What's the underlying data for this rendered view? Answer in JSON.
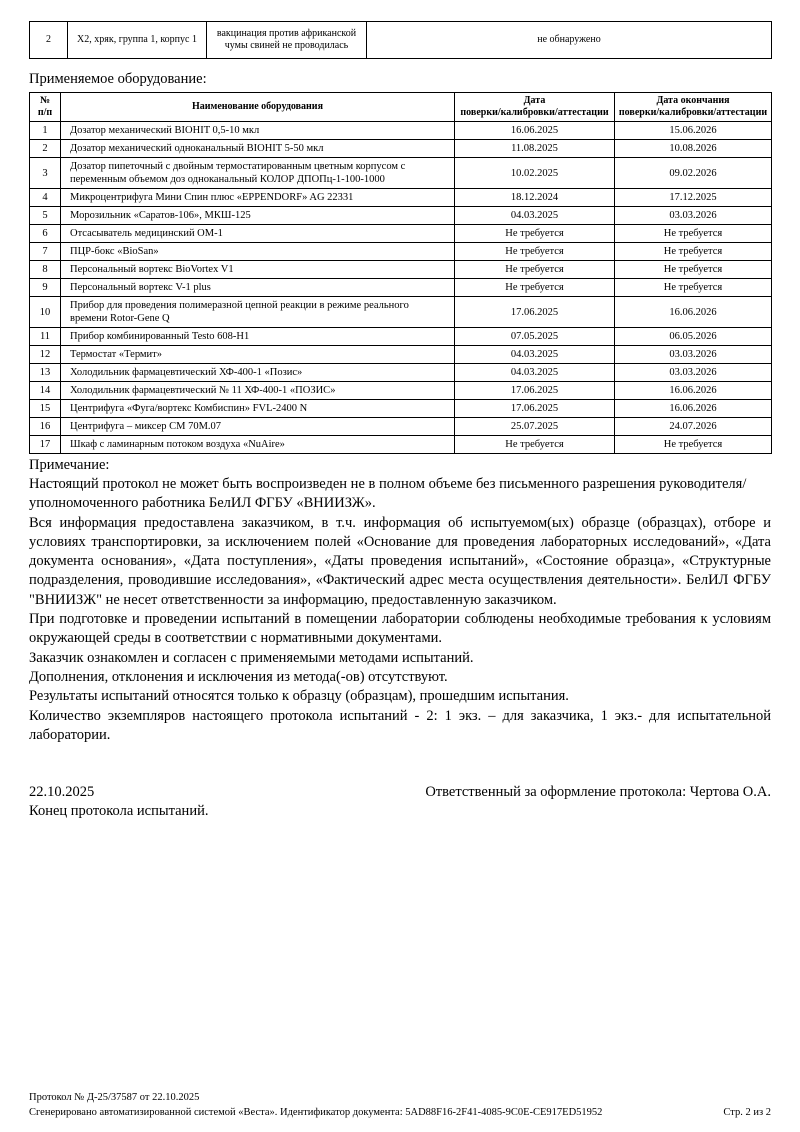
{
  "results_row": {
    "num": "2",
    "sample": "Х2, хряк, группа 1, корпус 1",
    "vaccination": "вакцинация против африканской чумы свиней не проводилась",
    "result": "не обнаружено"
  },
  "equipment": {
    "title": "Применяемое оборудование:",
    "headers": {
      "num": "№\nп/п",
      "name": "Наименование оборудования",
      "date": "Дата\nповерки/калибровки/аттестации",
      "date_end": "Дата окончания\nповерки/калибровки/аттестации"
    },
    "rows": [
      {
        "num": "1",
        "name": "Дозатор механический BIOHIT 0,5-10 мкл",
        "date": "16.06.2025",
        "date_end": "15.06.2026"
      },
      {
        "num": "2",
        "name": "Дозатор механический одноканальный BIOHIT 5-50 мкл",
        "date": "11.08.2025",
        "date_end": "10.08.2026"
      },
      {
        "num": "3",
        "name": "Дозатор пипеточный с двойным термостатированным цветным корпусом с переменным объемом доз одноканальный КОЛОР ДПОПц-1-100-1000",
        "date": "10.02.2025",
        "date_end": "09.02.2026"
      },
      {
        "num": "4",
        "name": "Микроцентрифуга Мини Спин плюс «EPPENDORF» AG 22331",
        "date": "18.12.2024",
        "date_end": "17.12.2025"
      },
      {
        "num": "5",
        "name": "Морозильник «Саратов-106», МКШ-125",
        "date": "04.03.2025",
        "date_end": "03.03.2026"
      },
      {
        "num": "6",
        "name": "Отсасыватель медицинский ОМ-1",
        "date": "Не требуется",
        "date_end": "Не требуется"
      },
      {
        "num": "7",
        "name": "ПЦР-бокс «BioSan»",
        "date": "Не требуется",
        "date_end": "Не требуется"
      },
      {
        "num": "8",
        "name": "Персональный вортекс BioVortex V1",
        "date": "Не требуется",
        "date_end": "Не требуется"
      },
      {
        "num": "9",
        "name": "Персональный вортекс V-1 plus",
        "date": "Не требуется",
        "date_end": "Не требуется"
      },
      {
        "num": "10",
        "name": "Прибор для проведения полимеразной цепной реакции в режиме реального времени Rotor-Gene Q",
        "date": "17.06.2025",
        "date_end": "16.06.2026"
      },
      {
        "num": "11",
        "name": "Прибор комбинированный Testo 608-H1",
        "date": "07.05.2025",
        "date_end": "06.05.2026"
      },
      {
        "num": "12",
        "name": "Термостат «Термит»",
        "date": "04.03.2025",
        "date_end": "03.03.2026"
      },
      {
        "num": "13",
        "name": "Холодильник фармацевтический ХФ-400-1 «Позис»",
        "date": "04.03.2025",
        "date_end": "03.03.2026"
      },
      {
        "num": "14",
        "name": "Холодильник фармацевтический № 11 ХФ-400-1 «ПОЗИС»",
        "date": "17.06.2025",
        "date_end": "16.06.2026"
      },
      {
        "num": "15",
        "name": "Центрифуга «Фуга/вортекс Комбиспин» FVL-2400 N",
        "date": "17.06.2025",
        "date_end": "16.06.2026"
      },
      {
        "num": "16",
        "name": "Центрифуга – миксер СМ 70М.07",
        "date": "25.07.2025",
        "date_end": "24.07.2026"
      },
      {
        "num": "17",
        "name": "Шкаф с ламинарным потоком воздуха «NuAire»",
        "date": "Не требуется",
        "date_end": "Не требуется"
      }
    ]
  },
  "notes": {
    "title": "Примечание:",
    "paragraphs": [
      {
        "text": "Настоящий протокол не может быть воспроизведен не в полном объеме без письменного разрешения руководителя/уполномоченного работника БелИЛ ФГБУ «ВНИИЗЖ».",
        "justify": false
      },
      {
        "text": "Вся информация предоставлена заказчиком, в т.ч. информация об испытуемом(ых) образце (образцах), отборе и условиях транспортировки, за исключением полей «Основание для проведения лабораторных исследований», «Дата документа основания», «Дата поступления», «Даты проведения испытаний», «Состояние образца», «Структурные подразделения, проводившие исследования», «Фактический адрес места осуществления деятельности». БелИЛ ФГБУ \"ВНИИЗЖ\" не несет ответственности за информацию, предоставленную заказчиком.",
        "justify": true
      },
      {
        "text": "При подготовке и проведении испытаний в помещении лаборатории соблюдены необходимые требования к условиям окружающей среды в соответствии с нормативными документами.",
        "justify": true
      },
      {
        "text": "Заказчик ознакомлен и согласен с применяемыми методами испытаний.",
        "justify": false
      },
      {
        "text": "Дополнения, отклонения и исключения из метода(-ов) отсутствуют.",
        "justify": false
      },
      {
        "text": "Результаты испытаний относятся только к образцу (образцам), прошедшим испытания.",
        "justify": false
      },
      {
        "text": "Количество экземпляров настоящего протокола испытаний - 2: 1 экз. – для заказчика, 1 экз.- для испытательной лаборатории.",
        "justify": true
      }
    ]
  },
  "signature": {
    "date": "22.10.2025",
    "responsible": "Ответственный за оформление протокола: Чертова О.А.",
    "end": "Конец протокола испытаний."
  },
  "footer": {
    "protocol": "Протокол № Д-25/37587 от 22.10.2025",
    "generated": "Сгенерировано автоматизированной системой «Веста». Идентификатор документа: 5AD88F16-2F41-4085-9C0E-CE917ED51952",
    "page": "Стр. 2 из 2"
  }
}
